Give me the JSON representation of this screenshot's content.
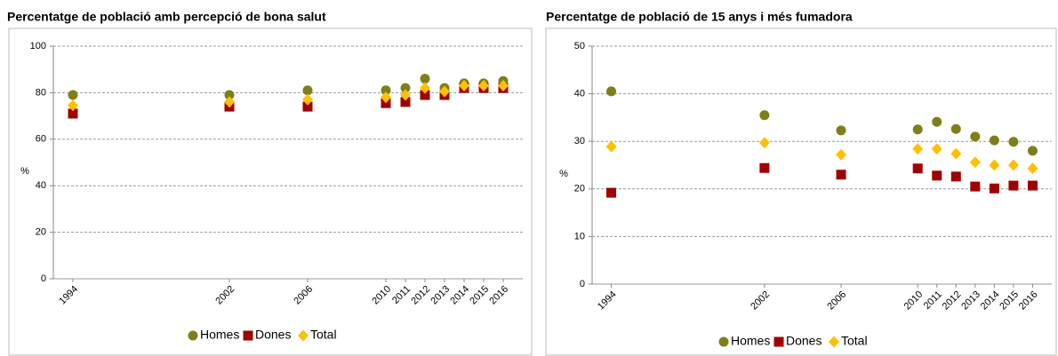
{
  "chart_data": [
    {
      "type": "scatter",
      "title": "Percentatge de població amb percepció de bona salut",
      "y_label": "%",
      "x": [
        1994,
        2002,
        2006,
        2010,
        2011,
        2012,
        2013,
        2014,
        2015,
        2016
      ],
      "xlim": [
        1993,
        2017
      ],
      "xticks": [
        1994,
        2002,
        2006,
        2010,
        2011,
        2012,
        2013,
        2014,
        2015,
        2016
      ],
      "ylim": [
        0,
        100
      ],
      "yticks": [
        0,
        20,
        40,
        60,
        80,
        100
      ],
      "grid": true,
      "legend": "bottom",
      "series": [
        {
          "name": "Homes",
          "color": "#7f7f1a",
          "marker": "circle",
          "values": [
            79,
            79,
            81,
            81,
            82,
            86,
            82,
            84,
            84,
            85
          ]
        },
        {
          "name": "Dones",
          "color": "#a00000",
          "marker": "square",
          "values": [
            71,
            74,
            74,
            75.5,
            76,
            79,
            79,
            82,
            82,
            82
          ]
        },
        {
          "name": "Total",
          "color": "#ffc000",
          "marker": "diamond",
          "values": [
            74.5,
            76,
            77,
            78,
            79,
            82,
            80.5,
            83,
            83,
            83
          ]
        }
      ]
    },
    {
      "type": "scatter",
      "title": "Percentatge de població de 15 anys i més fumadora",
      "y_label": "%",
      "x": [
        1994,
        2002,
        2006,
        2010,
        2011,
        2012,
        2013,
        2014,
        2015,
        2016
      ],
      "xlim": [
        1993,
        2017
      ],
      "xticks": [
        1994,
        2002,
        2006,
        2010,
        2011,
        2012,
        2013,
        2014,
        2015,
        2016
      ],
      "ylim": [
        0,
        50
      ],
      "yticks": [
        0,
        10,
        20,
        30,
        40,
        50
      ],
      "grid": true,
      "legend": "bottom",
      "series": [
        {
          "name": "Homes",
          "color": "#7f7f1a",
          "marker": "circle",
          "values": [
            40.5,
            35.5,
            32.3,
            32.5,
            34.1,
            32.6,
            31,
            30.2,
            29.9,
            28
          ]
        },
        {
          "name": "Dones",
          "color": "#a00000",
          "marker": "square",
          "values": [
            19.2,
            24.4,
            23,
            24.3,
            22.8,
            22.6,
            20.5,
            20.1,
            20.7,
            20.7
          ]
        },
        {
          "name": "Total",
          "color": "#ffc000",
          "marker": "diamond",
          "values": [
            28.9,
            29.7,
            27.2,
            28.4,
            28.4,
            27.4,
            25.6,
            25,
            25,
            24.3
          ]
        }
      ]
    }
  ]
}
